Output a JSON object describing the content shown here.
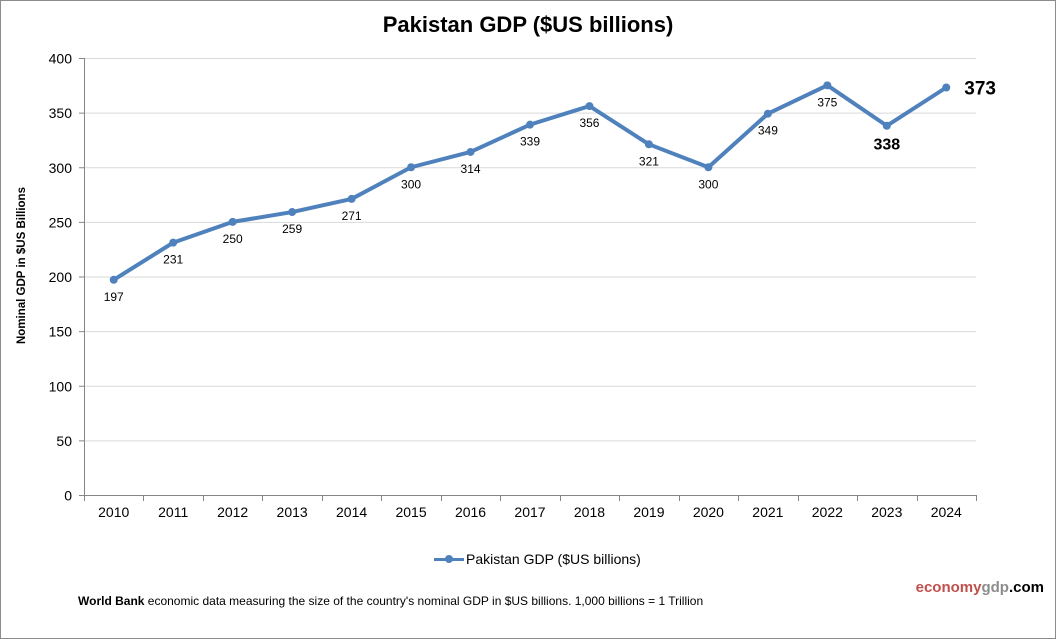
{
  "chart_data": {
    "type": "line",
    "title": "Pakistan GDP ($US billions)",
    "xlabel": "",
    "ylabel": "Nominal GDP in $US Billions",
    "ylim": [
      0,
      400
    ],
    "yticks": [
      "0",
      "50",
      "100",
      "150",
      "200",
      "250",
      "300",
      "350",
      "400"
    ],
    "ytick_values": [
      0,
      50,
      100,
      150,
      200,
      250,
      300,
      350,
      400
    ],
    "grid": true,
    "categories": [
      "2010",
      "2011",
      "2012",
      "2013",
      "2014",
      "2015",
      "2016",
      "2017",
      "2018",
      "2019",
      "2020",
      "2021",
      "2022",
      "2023",
      "2024"
    ],
    "series": [
      {
        "name": "Pakistan GDP ($US billions)",
        "color": "#4f81bd",
        "values": [
          197,
          231,
          250,
          259,
          271,
          300,
          314,
          339,
          356,
          321,
          300,
          349,
          375,
          338,
          373
        ],
        "labels": [
          "197",
          "231",
          "250",
          "259",
          "271",
          "300",
          "314",
          "339",
          "356",
          "321",
          "300",
          "349",
          "375",
          "338",
          "373"
        ]
      }
    ],
    "legend": {
      "position": "bottom",
      "label": "Pakistan GDP ($US billions)"
    },
    "highlighted_labels": [
      "338",
      "373"
    ]
  },
  "footnote": {
    "bold": "World Bank",
    "text": " economic data  measuring the size of the country's nominal GDP in $US billions. 1,000 billions = 1 Trillion"
  },
  "brand": {
    "part1": "economy",
    "part2": "gdp",
    "part3": ".com"
  }
}
